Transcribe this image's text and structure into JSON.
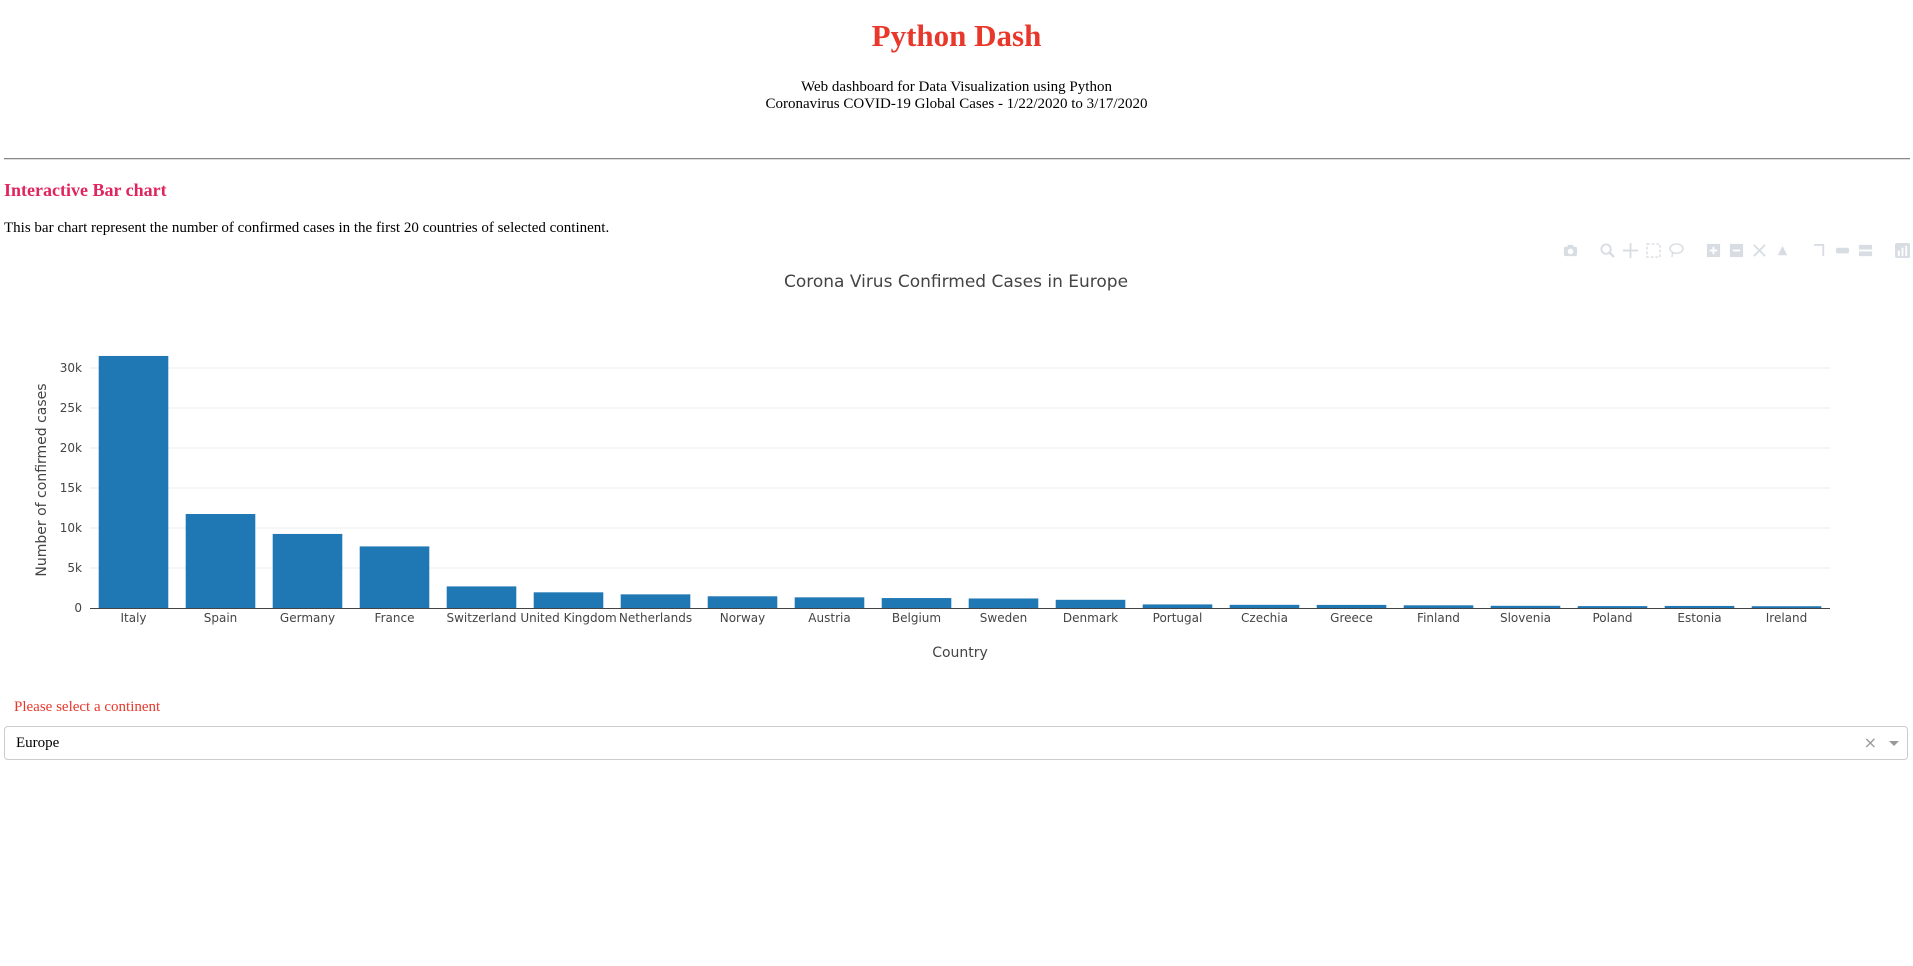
{
  "header": {
    "title": "Python Dash",
    "subtitle_line1": "Web dashboard for Data Visualization using Python",
    "subtitle_line2": "Coronavirus COVID-19 Global Cases - 1/22/2020 to 3/17/2020"
  },
  "section": {
    "heading": "Interactive Bar chart",
    "description": "This bar chart represent the number of confirmed cases in the first 20 countries of selected continent."
  },
  "modebar": {
    "icons": [
      "camera-icon",
      "zoom-icon",
      "pan-icon",
      "box-select-icon",
      "lasso-select-icon",
      "zoom-in-icon",
      "zoom-out-icon",
      "autoscale-icon",
      "reset-axes-icon",
      "spike-lines-icon",
      "hover-closest-icon",
      "hover-compare-icon",
      "plotly-logo-icon"
    ]
  },
  "chart_data": {
    "type": "bar",
    "title": "Corona Virus Confirmed Cases in Europe",
    "xlabel": "Country",
    "ylabel": "Number of confirmed cases",
    "categories": [
      "Italy",
      "Spain",
      "Germany",
      "France",
      "Switzerland",
      "United Kingdom",
      "Netherlands",
      "Norway",
      "Austria",
      "Belgium",
      "Sweden",
      "Denmark",
      "Portugal",
      "Czechia",
      "Greece",
      "Finland",
      "Slovenia",
      "Poland",
      "Estonia",
      "Ireland"
    ],
    "values": [
      31506,
      11748,
      9257,
      7699,
      2700,
      1960,
      1705,
      1463,
      1332,
      1243,
      1190,
      1024,
      448,
      396,
      387,
      336,
      275,
      238,
      258,
      223
    ],
    "ylim": [
      0,
      32000
    ],
    "yticks": [
      0,
      5000,
      10000,
      15000,
      20000,
      25000,
      30000
    ],
    "ytick_labels": [
      "0",
      "5k",
      "10k",
      "15k",
      "20k",
      "25k",
      "30k"
    ],
    "bar_color": "#1f77b4",
    "grid": true
  },
  "dropdown": {
    "label": "Please select a continent",
    "value": "Europe",
    "clear_symbol": "×"
  },
  "colors": {
    "title": "#e8382c",
    "heading": "#e0245e",
    "bar": "#1f77b4"
  }
}
